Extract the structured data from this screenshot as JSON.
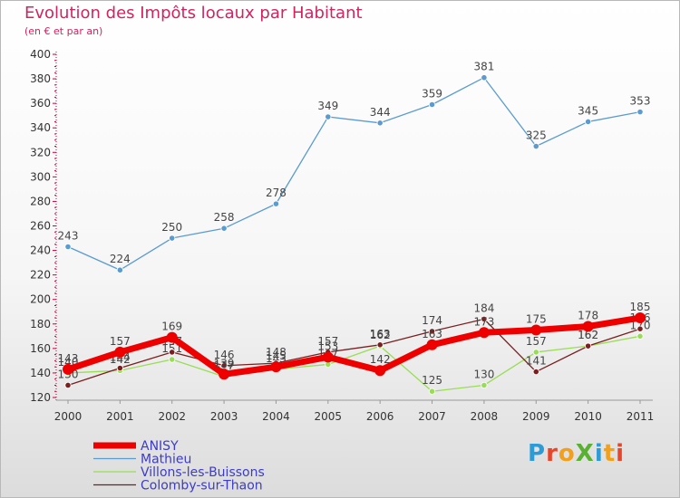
{
  "header": {
    "title": "Evolution des Impôts locaux par Habitant",
    "subtitle": "(en € et par an)"
  },
  "logo": {
    "text": "ProXiti",
    "letter_colors": [
      "#2d9bd6",
      "#e8462a",
      "#f2a01c",
      "#5ab031",
      "#2d9bd6",
      "#f2a01c",
      "#e8462a"
    ]
  },
  "chart_data": {
    "type": "line",
    "title": "Evolution des Impôts locaux par Habitant",
    "subtitle": "(en € et par an)",
    "xlabel": "",
    "ylabel": "",
    "x": [
      "2000",
      "2001",
      "2002",
      "2003",
      "2004",
      "2005",
      "2006",
      "2007",
      "2008",
      "2009",
      "2010",
      "2011"
    ],
    "ylim": [
      120,
      400
    ],
    "yticks": [
      120,
      140,
      160,
      180,
      200,
      220,
      240,
      260,
      280,
      300,
      320,
      340,
      360,
      380,
      400
    ],
    "grid": false,
    "legend_position": "bottom-left",
    "series": [
      {
        "name": "Mathieu",
        "color": "#5b9bd0",
        "values": [
          243,
          224,
          250,
          258,
          278,
          349,
          344,
          359,
          381,
          325,
          345,
          353
        ],
        "labels": [
          "243",
          "224",
          "250",
          "258",
          "278",
          "349",
          "344",
          "359",
          "381",
          "325",
          "345",
          "353"
        ]
      },
      {
        "name": "Villons-les-Buissons",
        "color": "#99dd55",
        "values": [
          140,
          142,
          151,
          137,
          143,
          147,
          162,
          125,
          130,
          157,
          162,
          170
        ],
        "labels": [
          "140",
          "142",
          "151",
          "137",
          "143",
          "147",
          "162",
          "125",
          "130",
          "157",
          "162",
          "170"
        ]
      },
      {
        "name": "Colomby-sur-Thaon",
        "color": "#7a1f1f",
        "values": [
          130,
          144,
          157,
          146,
          148,
          157,
          163,
          174,
          184,
          141,
          162,
          176
        ],
        "labels": [
          "130",
          "144",
          "157",
          "146",
          "148",
          "157",
          "163",
          "174",
          "184",
          "141",
          "162",
          "176"
        ]
      },
      {
        "name": "ANISY",
        "color": "#ee0000",
        "values": [
          143,
          157,
          169,
          139,
          145,
          153,
          142,
          163,
          173,
          175,
          178,
          185
        ],
        "labels": [
          "143",
          "157",
          "169",
          "139",
          "145",
          "153",
          "142",
          "163",
          "173",
          "175",
          "178",
          "185"
        ]
      }
    ],
    "legend": [
      {
        "name": "ANISY",
        "color": "#ee0000"
      },
      {
        "name": "Mathieu",
        "color": "#5b9bd0"
      },
      {
        "name": "Villons-les-Buissons",
        "color": "#99dd55"
      },
      {
        "name": "Colomby-sur-Thaon",
        "color": "#7a1f1f"
      }
    ]
  }
}
